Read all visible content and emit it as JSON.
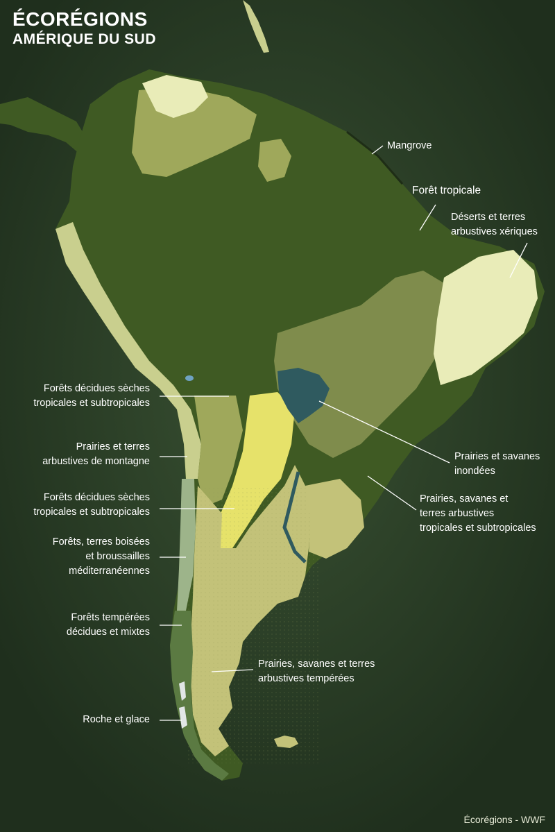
{
  "title": {
    "line1": "ÉCORÉGIONS",
    "line2": "AMÉRIQUE DU SUD"
  },
  "colors": {
    "background": "#263824",
    "tropical_forest": "#3f5a23",
    "dry_forest": "#9fa85b",
    "montane": "#c9cf8e",
    "xeric": "#e9ecb8",
    "flooded": "#2f5a5f",
    "savanna": "#7f8c4c",
    "temperate_grass": "#c3c279",
    "chaco": "#e6e26a",
    "mediterranean": "#9db48a",
    "temperate_forest": "#5b7a42",
    "rock_ice": "#e2e6e6",
    "water": "#6fa2c2",
    "mangrove": "#1e2d16"
  },
  "labels": {
    "mangrove": "Mangrove",
    "foret_tropicale": "Forêt tropicale",
    "deserts": [
      "Déserts et terres",
      "arbustives xériques"
    ],
    "forets_decidues_1": [
      "Forêts décidues sèches",
      "tropicales et subtropicales"
    ],
    "prairies_montagne": [
      "Prairies et terres",
      "arbustives de montagne"
    ],
    "forets_decidues_2": [
      "Forêts décidues sèches",
      "tropicales et subtropicales"
    ],
    "mediterraneennes": [
      "Forêts, terres boisées",
      "et broussailles",
      "méditerranéennes"
    ],
    "temperees": [
      "Forêts tempérées",
      "décidues et mixtes"
    ],
    "roche_glace": "Roche et glace",
    "prairies_inondees": [
      "Prairies et savanes",
      "inondées"
    ],
    "prairies_tropicales": [
      "Prairies, savanes et",
      "terres arbustives",
      "tropicales et subtropicales"
    ],
    "prairies_temperees": [
      "Prairies, savanes et terres",
      "arbustives tempérées"
    ]
  },
  "source": "Écorégions - WWF"
}
